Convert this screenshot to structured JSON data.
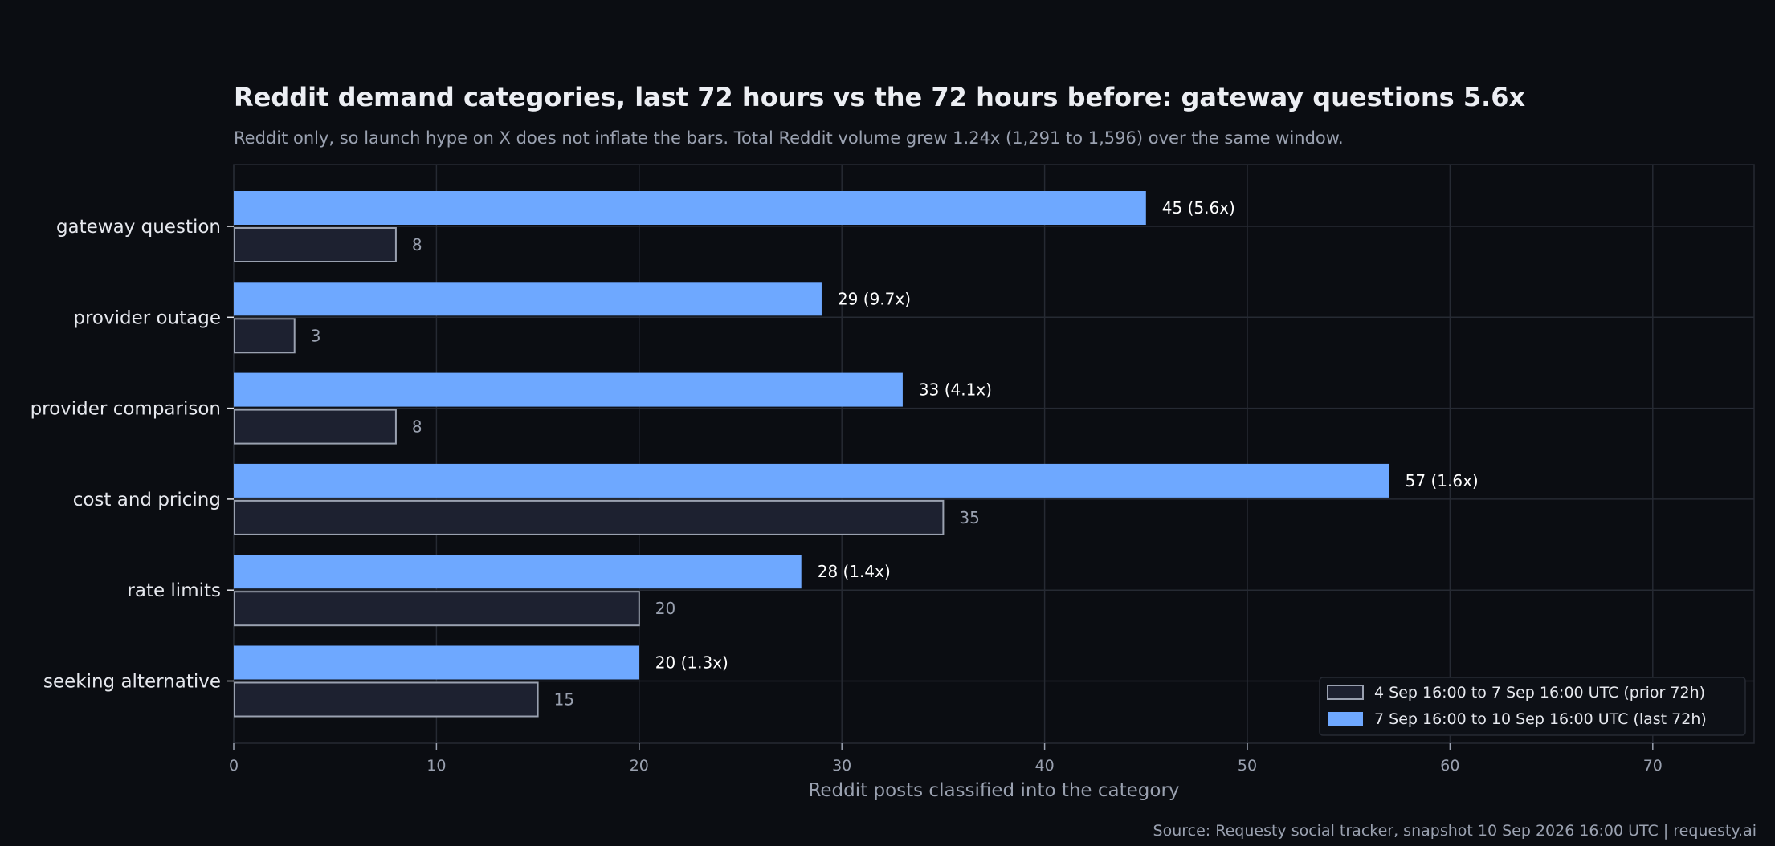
{
  "chart_data": {
    "type": "bar",
    "orientation": "horizontal",
    "title": "Reddit demand categories, last 72 hours vs the 72 hours before: gateway questions 5.6x",
    "subtitle": "Reddit only, so launch hype on X does not inflate the bars. Total Reddit volume grew 1.24x (1,291 to 1,596) over the same window.",
    "xlabel": "Reddit posts classified into the category",
    "ylabel": "",
    "xlim": [
      0,
      75
    ],
    "xticks": [
      0,
      10,
      20,
      30,
      40,
      50,
      60,
      70
    ],
    "grid": true,
    "legend_position": "bottom-right",
    "categories": [
      "gateway question",
      "provider outage",
      "provider comparison",
      "cost and pricing",
      "rate limits",
      "seeking alternative"
    ],
    "series": [
      {
        "name": "7 Sep 16:00 to 10 Sep 16:00 UTC (last 72h)",
        "values": [
          45,
          29,
          33,
          57,
          28,
          20
        ],
        "labels": [
          "45  (5.6x)",
          "29  (9.7x)",
          "33  (4.1x)",
          "57  (1.6x)",
          "28  (1.4x)",
          "20  (1.3x)"
        ],
        "color": "#6ea8ff"
      },
      {
        "name": "4 Sep 16:00 to 7 Sep 16:00 UTC (prior 72h)",
        "values": [
          8,
          3,
          8,
          35,
          20,
          15
        ],
        "labels": [
          "8",
          "3",
          "8",
          "35",
          "20",
          "15"
        ],
        "color": "#1d2130",
        "edge_color": "#9aa1b0"
      }
    ],
    "source": "Source: Requesty social tracker, snapshot 10 Sep 2026 16:00 UTC  |  requesty.ai"
  },
  "colors": {
    "background": "#0b0d12",
    "grid": "#262a33",
    "axis_text": "#9aa1b0",
    "category_text": "#e6e8ee",
    "accent": "#6ea8ff"
  }
}
